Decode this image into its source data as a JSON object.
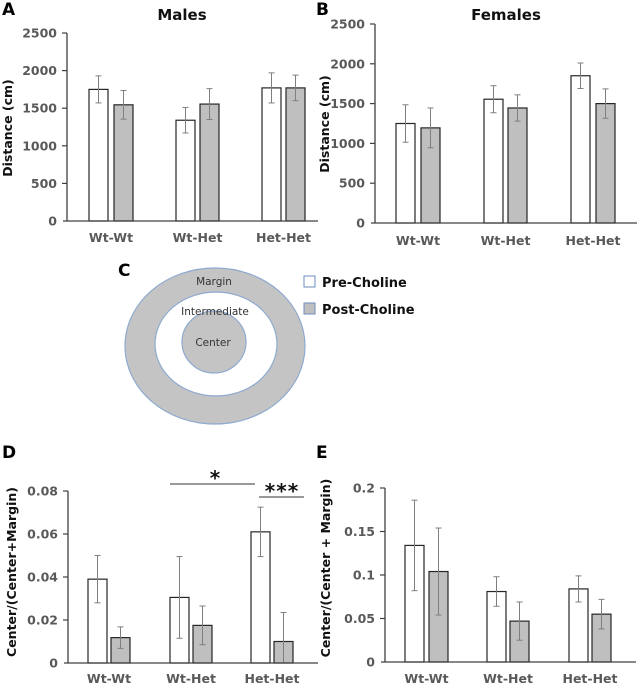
{
  "legend": {
    "pre_label": "Pre-Choline",
    "post_label": "Post-Choline",
    "pre_color": "#ffffff",
    "post_color": "#bfbfbf"
  },
  "diagram": {
    "letter": "C",
    "margin_label": "Margin",
    "intermediate_label": "Intermediate",
    "center_label": "Center",
    "fill_color": "#c4c4c4",
    "stroke_color": "#8eaad0"
  },
  "chart_data": [
    {
      "id": "A",
      "letter": "A",
      "type": "bar",
      "title": "Males",
      "xlabel": "",
      "ylabel": "Distance (cm)",
      "ylim": [
        0,
        2500
      ],
      "yticks": [
        0,
        500,
        1000,
        1500,
        2000,
        2500
      ],
      "ytick_labels": [
        "0",
        "500",
        "1000",
        "1500",
        "2000",
        "2500"
      ],
      "categories": [
        "Wt-Wt",
        "Wt-Het",
        "Het-Het"
      ],
      "series": [
        {
          "name": "Pre-Choline",
          "values": [
            1750,
            1340,
            1770
          ],
          "errors": [
            180,
            170,
            200
          ]
        },
        {
          "name": "Post-Choline",
          "values": [
            1545,
            1555,
            1770
          ],
          "errors": [
            190,
            205,
            170
          ]
        }
      ],
      "annotations": []
    },
    {
      "id": "B",
      "letter": "B",
      "type": "bar",
      "title": "Females",
      "xlabel": "",
      "ylabel": "Distance (cm)",
      "ylim": [
        0,
        2500
      ],
      "yticks": [
        0,
        500,
        1000,
        1500,
        2000,
        2500
      ],
      "ytick_labels": [
        "0",
        "500",
        "1000",
        "1500",
        "2000",
        "2500"
      ],
      "categories": [
        "Wt-Wt",
        "Wt-Het",
        "Het-Het"
      ],
      "series": [
        {
          "name": "Pre-Choline",
          "values": [
            1250,
            1555,
            1850
          ],
          "errors": [
            235,
            170,
            160
          ]
        },
        {
          "name": "Post-Choline",
          "values": [
            1195,
            1445,
            1500
          ],
          "errors": [
            250,
            165,
            185
          ]
        }
      ],
      "annotations": []
    },
    {
      "id": "D",
      "letter": "D",
      "type": "bar",
      "title": "",
      "xlabel": "",
      "ylabel": "Center/(Center+Margin)",
      "ylim": [
        0,
        0.08
      ],
      "yticks": [
        0,
        0.02,
        0.04,
        0.06,
        0.08
      ],
      "ytick_labels": [
        "0",
        "0.02",
        "0.04",
        "0.06",
        "0.08"
      ],
      "categories": [
        "Wt-Wt",
        "Wt-Het",
        "Het-Het"
      ],
      "series": [
        {
          "name": "Pre-Choline",
          "values": [
            0.039,
            0.0305,
            0.061
          ],
          "errors": [
            0.011,
            0.019,
            0.0115
          ]
        },
        {
          "name": "Post-Choline",
          "values": [
            0.0118,
            0.0175,
            0.01
          ],
          "errors": [
            0.005,
            0.009,
            0.0135
          ]
        }
      ],
      "annotations": [
        {
          "text": "*",
          "from": "Wt-Het Pre-Choline",
          "to": "Het-Het Pre-Choline"
        },
        {
          "text": "***",
          "from": "Het-Het Pre-Choline",
          "to": "Het-Het Post-Choline"
        }
      ]
    },
    {
      "id": "E",
      "letter": "E",
      "type": "bar",
      "title": "",
      "xlabel": "",
      "ylabel": "Center/(Center + Margin)",
      "ylim": [
        0,
        0.2
      ],
      "yticks": [
        0,
        0.05,
        0.1,
        0.15,
        0.2
      ],
      "ytick_labels": [
        "0",
        "0.05",
        "0.1",
        "0.15",
        "0.2"
      ],
      "categories": [
        "Wt-Wt",
        "Wt-Het",
        "Het-Het"
      ],
      "series": [
        {
          "name": "Pre-Choline",
          "values": [
            0.134,
            0.081,
            0.084
          ],
          "errors": [
            0.052,
            0.017,
            0.015
          ]
        },
        {
          "name": "Post-Choline",
          "values": [
            0.104,
            0.047,
            0.055
          ],
          "errors": [
            0.05,
            0.022,
            0.017
          ]
        }
      ],
      "annotations": []
    }
  ]
}
